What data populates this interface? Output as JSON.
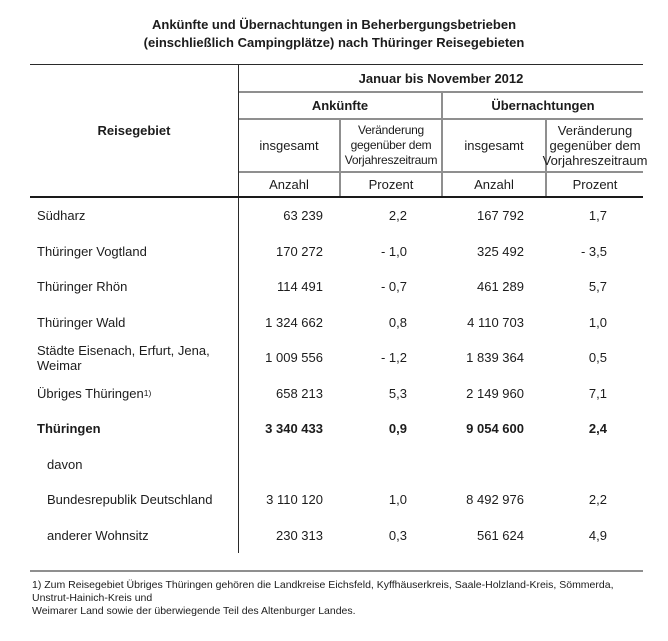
{
  "title": {
    "line1": "Ankünfte und Übernachtungen in Beherbergungsbetrieben",
    "line2": "(einschließlich Campingplätze) nach Thüringer Reisegebieten"
  },
  "table": {
    "row_header": "Reisegebiet",
    "period": "Januar bis November 2012",
    "group1": "Ankünfte",
    "group2": "Übernachtungen",
    "sub_total": "insgesamt",
    "sub_change": "Veränderung gegenüber dem Vorjahreszeitraum",
    "unit_count": "Anzahl",
    "unit_percent": "Prozent",
    "rows": [
      {
        "label": "Südharz",
        "sup": "",
        "ank_total": "63 239",
        "ank_pct": "2,2",
        "ueb_total": "167 792",
        "ueb_pct": "1,7"
      },
      {
        "label": "Thüringer Vogtland",
        "sup": "",
        "ank_total": "170 272",
        "ank_pct": "- 1,0",
        "ueb_total": "325 492",
        "ueb_pct": "- 3,5"
      },
      {
        "label": "Thüringer Rhön",
        "sup": "",
        "ank_total": "114 491",
        "ank_pct": "- 0,7",
        "ueb_total": "461 289",
        "ueb_pct": "5,7"
      },
      {
        "label": "Thüringer Wald",
        "sup": "",
        "ank_total": "1 324 662",
        "ank_pct": "0,8",
        "ueb_total": "4 110 703",
        "ueb_pct": "1,0"
      },
      {
        "label": "Städte Eisenach, Erfurt, Jena, Weimar",
        "sup": "",
        "ank_total": "1 009 556",
        "ank_pct": "- 1,2",
        "ueb_total": "1 839 364",
        "ueb_pct": "0,5"
      },
      {
        "label": "Übriges Thüringen ",
        "sup": "1)",
        "ank_total": "658 213",
        "ank_pct": "5,3",
        "ueb_total": "2 149 960",
        "ueb_pct": "7,1"
      },
      {
        "label": "Thüringen",
        "sup": "",
        "ank_total": "3 340 433",
        "ank_pct": "0,9",
        "ueb_total": "9 054 600",
        "ueb_pct": "2,4"
      },
      {
        "label": "davon",
        "sup": "",
        "ank_total": "",
        "ank_pct": "",
        "ueb_total": "",
        "ueb_pct": ""
      },
      {
        "label": "Bundesrepublik Deutschland",
        "sup": "",
        "ank_total": "3 110 120",
        "ank_pct": "1,0",
        "ueb_total": "8 492 976",
        "ueb_pct": "2,2"
      },
      {
        "label": "anderer Wohnsitz",
        "sup": "",
        "ank_total": "230 313",
        "ank_pct": "0,3",
        "ueb_total": "561 624",
        "ueb_pct": "4,9"
      }
    ]
  },
  "footnote": {
    "line1": "1) Zum Reisegebiet Übriges Thüringen gehören die Landkreise Eichsfeld, Kyffhäuserkreis, Saale-Holzland-Kreis, Sömmerda, Unstrut-Hainich-Kreis und",
    "line2": "Weimarer Land sowie der überwiegende Teil des Altenburger Landes."
  }
}
